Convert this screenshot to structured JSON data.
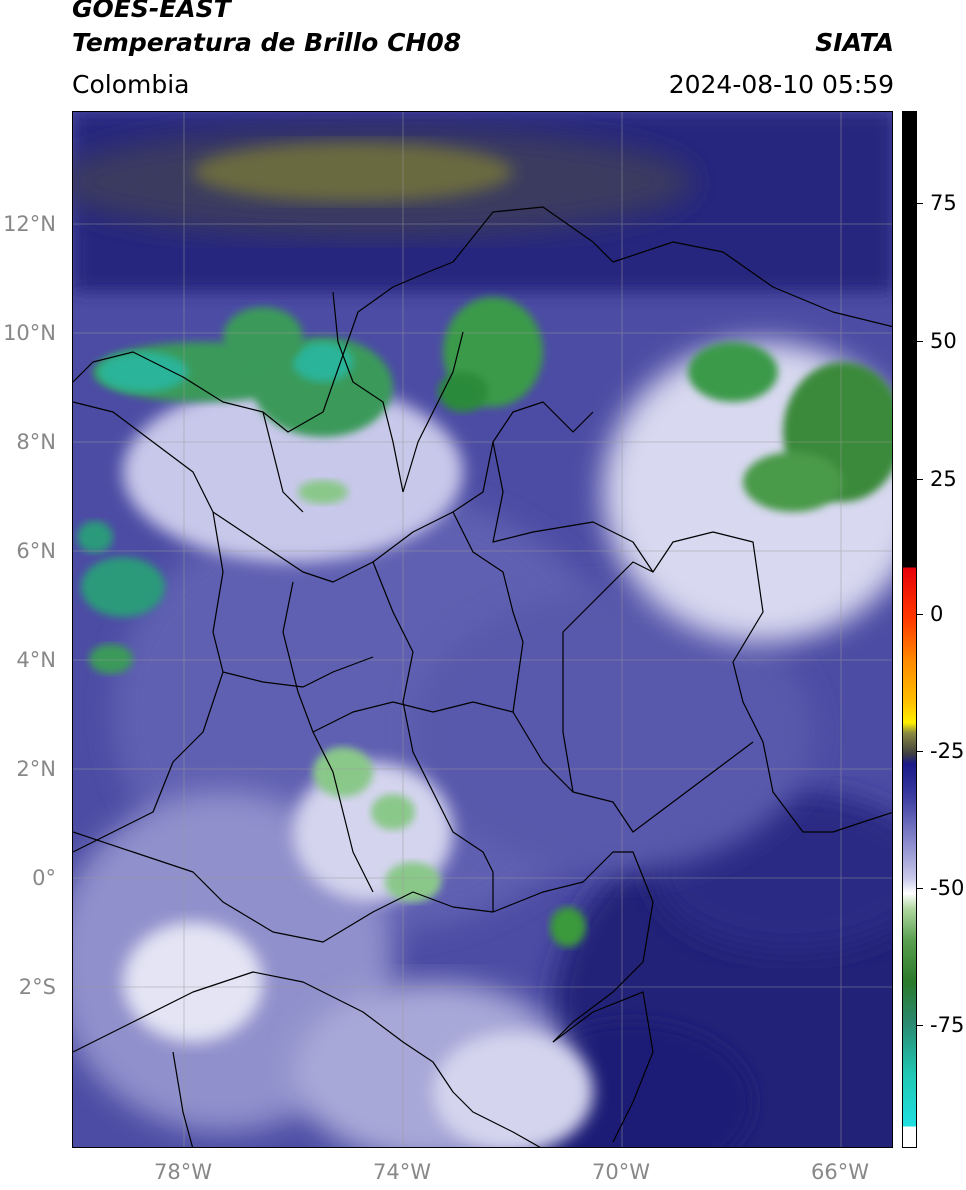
{
  "header": {
    "satellite": "GOES-EAST",
    "product": "Temperatura de Brillo CH08",
    "organization": "SIATA",
    "region": "Colombia",
    "timestamp": "2024-08-10 05:59"
  },
  "map": {
    "lat_labels": [
      "12°N",
      "10°N",
      "8°N",
      "6°N",
      "4°N",
      "2°N",
      "0°",
      "2°S"
    ],
    "lon_labels": [
      "78°W",
      "74°W",
      "70°W",
      "66°W"
    ],
    "colors": {
      "clear_high": "#2a2a88",
      "mid_cloud": "#7a7ac0",
      "cold_cloud": "#e8e8f6",
      "very_cold": "#3a8a3a",
      "coldest": "#2ac0a8",
      "warm_north": "#5a5a38"
    }
  },
  "colorbar": {
    "labels": [
      "75",
      "50",
      "25",
      "0",
      "-25",
      "-50",
      "-75"
    ]
  }
}
